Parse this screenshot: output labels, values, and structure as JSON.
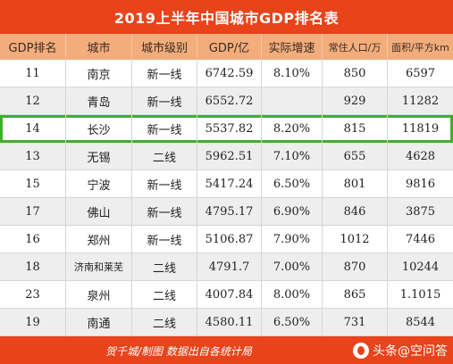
{
  "title": "2019上半年中国城市GDP排名表",
  "headers": [
    "GDP排名",
    "城市",
    "城市级别",
    "GDP/亿",
    "实际增速",
    "常住人口/万",
    "面积/平方km"
  ],
  "rows": [
    [
      "11",
      "南京",
      "新一线",
      "6742.59",
      "8.10%",
      "850",
      "6597"
    ],
    [
      "12",
      "青岛",
      "新一线",
      "6552.72",
      "",
      "929",
      "11282"
    ],
    [
      "14",
      "长沙",
      "新一线",
      "5537.82",
      "8.20%",
      "815",
      "11819"
    ],
    [
      "13",
      "无锡",
      "二线",
      "5962.51",
      "7.10%",
      "655",
      "4628"
    ],
    [
      "15",
      "宁波",
      "新一线",
      "5417.24",
      "6.50%",
      "801",
      "9816"
    ],
    [
      "17",
      "佛山",
      "新一线",
      "4795.17",
      "6.90%",
      "846",
      "3875"
    ],
    [
      "16",
      "郑州",
      "新一线",
      "5106.87",
      "7.90%",
      "1012",
      "7446"
    ],
    [
      "18",
      "济南和莱芜",
      "二线",
      "4791.7",
      "7.00%",
      "870",
      "10244"
    ],
    [
      "23",
      "泉州",
      "二线",
      "4007.84",
      "8.00%",
      "865",
      "1.1015"
    ],
    [
      "19",
      "南通",
      "二线",
      "4580.11",
      "6.50%",
      "731",
      "8544"
    ]
  ],
  "highlight_row_index": 2,
  "footer": {
    "note": "贺千城/制图    数据出自各统计局",
    "brand": "头条@空问答"
  },
  "colors": {
    "title_bg": "#e8431b",
    "header_bg": "#f3ad7c",
    "highlight_border": "#3fae2b",
    "alt_row_bg": "#eeeeee"
  }
}
